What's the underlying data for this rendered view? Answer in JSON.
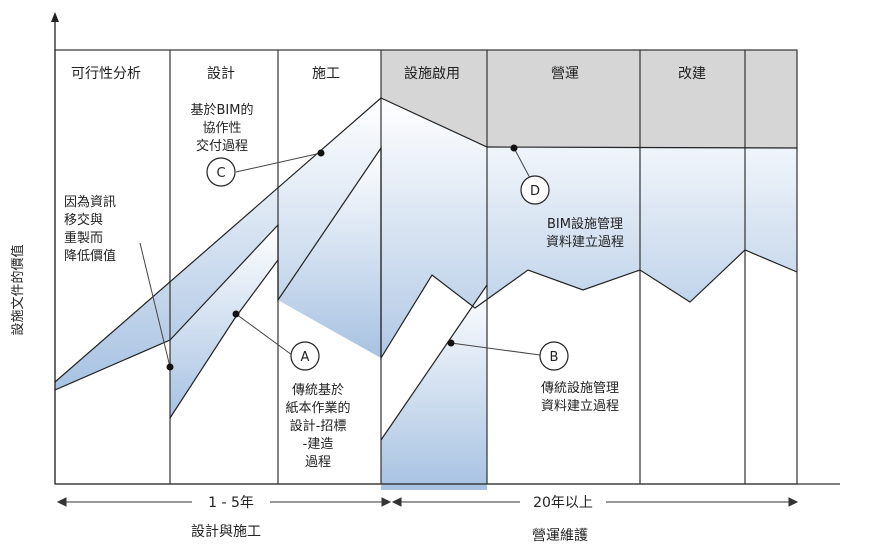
{
  "y_axis_label": "設施文件的價值",
  "phases": [
    "可行性分析",
    "設計",
    "施工",
    "設施啟用",
    "營運",
    "改建",
    ""
  ],
  "annotations": {
    "A": {
      "marker": "A",
      "lines": [
        "傳統基於",
        "紙本作業的",
        "設計-招標",
        "-建造",
        "過程"
      ]
    },
    "B": {
      "marker": "B",
      "lines": [
        "傳統設施管理",
        "資料建立過程"
      ]
    },
    "C": {
      "marker": "C",
      "lines": [
        "基於BIM的",
        "協作性",
        "交付過程"
      ]
    },
    "D": {
      "marker": "D",
      "lines": [
        "BIM設施管理",
        "資料建立過程"
      ]
    },
    "loss": {
      "lines": [
        "因為資訊",
        "移交與",
        "重製而",
        "降低價值"
      ]
    }
  },
  "timeline": [
    {
      "span": "1 - 5年",
      "label": "設計與施工"
    },
    {
      "span": "20年以上",
      "label": "營運維護"
    }
  ],
  "colors": {
    "operations_band": "#d6d6d6",
    "area_top": "#ffffff",
    "area_bottom": "#a7c2e2",
    "line": "#222222"
  }
}
